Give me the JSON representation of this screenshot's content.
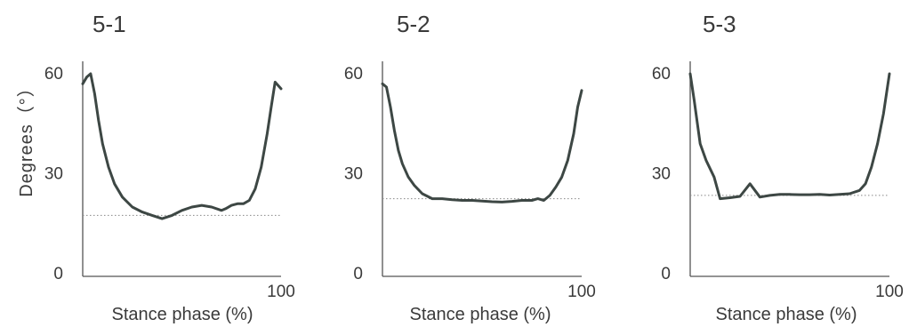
{
  "colors": {
    "line": "#3d4744",
    "axis": "#555555",
    "reference": "#888888",
    "text": "#3a3a3a"
  },
  "shared_ylabel": "Degrees（°）",
  "chart_data": [
    {
      "type": "line",
      "title": "5-1",
      "xlabel": "Stance phase (%)",
      "ylabel": "Degrees（°）",
      "xlim": [
        0,
        100
      ],
      "ylim": [
        0,
        60
      ],
      "yticks": [
        "60",
        "30",
        "0"
      ],
      "xticks": [
        "100"
      ],
      "grid": false,
      "reference_line": 17.5,
      "series": [
        {
          "x": [
            0,
            2,
            4,
            6,
            8,
            10,
            13,
            16,
            20,
            25,
            30,
            35,
            40,
            45,
            50,
            55,
            60,
            65,
            70,
            72,
            75,
            78,
            81,
            84,
            87,
            90,
            93,
            95,
            97,
            100
          ],
          "y": [
            57,
            59,
            60,
            54,
            46,
            39,
            32,
            27,
            23,
            20,
            18.5,
            17.5,
            16.5,
            17.5,
            19,
            20,
            20.5,
            20,
            19,
            19.5,
            20.5,
            21,
            21,
            22,
            25.5,
            32,
            42,
            50,
            57.5,
            55.5
          ]
        }
      ]
    },
    {
      "type": "line",
      "title": "5-2",
      "xlabel": "Stance phase (%)",
      "ylabel": "",
      "xlim": [
        0,
        100
      ],
      "ylim": [
        0,
        60
      ],
      "yticks": [
        "60",
        "30",
        "0"
      ],
      "xticks": [
        "100"
      ],
      "grid": false,
      "reference_line": 22.5,
      "series": [
        {
          "x": [
            0,
            2,
            4,
            6,
            8,
            10,
            13,
            16,
            20,
            25,
            30,
            35,
            40,
            45,
            50,
            55,
            60,
            65,
            70,
            75,
            78,
            81,
            84,
            87,
            90,
            93,
            96,
            98,
            100
          ],
          "y": [
            57,
            56,
            50,
            43,
            37,
            33,
            29,
            26.5,
            24,
            22.5,
            22.5,
            22.2,
            22,
            22,
            21.8,
            21.6,
            21.5,
            21.7,
            22,
            22,
            22.5,
            22,
            23.5,
            26,
            29,
            34,
            42,
            50,
            55
          ]
        }
      ]
    },
    {
      "type": "line",
      "title": "5-3",
      "xlabel": "Stance phase (%)",
      "ylabel": "",
      "xlim": [
        0,
        100
      ],
      "ylim": [
        0,
        60
      ],
      "yticks": [
        "60",
        "30",
        "0"
      ],
      "xticks": [
        "100"
      ],
      "grid": false,
      "reference_line": 23.5,
      "series": [
        {
          "x": [
            0,
            2,
            5,
            8,
            12,
            15,
            20,
            25,
            30,
            35,
            40,
            45,
            50,
            55,
            60,
            65,
            70,
            75,
            80,
            85,
            88,
            91,
            94,
            97,
            100
          ],
          "y": [
            60,
            52,
            39,
            34,
            29,
            22.5,
            22.8,
            23.2,
            27,
            23,
            23.5,
            23.8,
            23.8,
            23.7,
            23.7,
            23.8,
            23.6,
            23.8,
            24,
            25,
            27,
            32,
            39,
            48,
            60
          ]
        }
      ]
    }
  ]
}
